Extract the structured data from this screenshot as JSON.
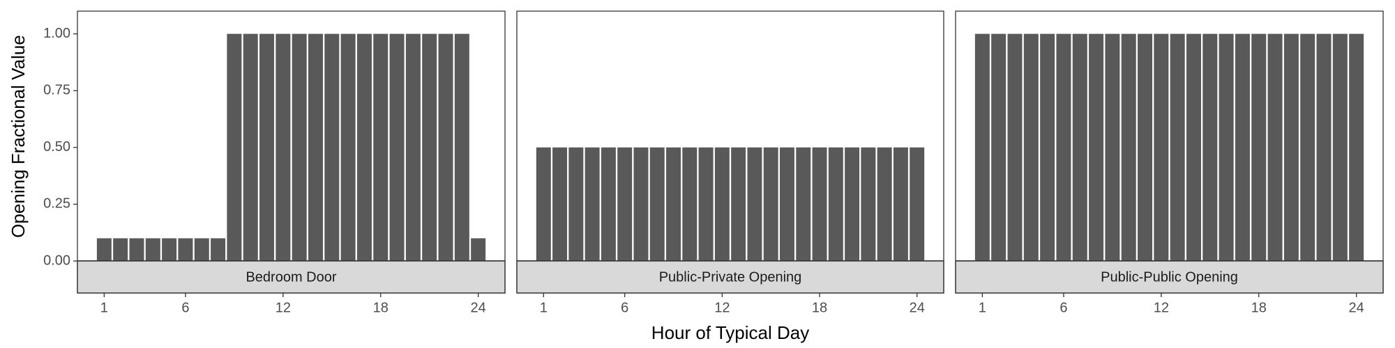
{
  "chart_data": {
    "type": "bar",
    "x_label": "Hour of Typical Day",
    "y_label": "Opening Fractional Value",
    "color": "#595959",
    "x": [
      1,
      2,
      3,
      4,
      5,
      6,
      7,
      8,
      9,
      10,
      11,
      12,
      13,
      14,
      15,
      16,
      17,
      18,
      19,
      20,
      21,
      22,
      23,
      24
    ],
    "xlim": [
      -0.645,
      25.645
    ],
    "xticks": [
      1,
      6,
      12,
      18,
      24
    ],
    "ylim": [
      0,
      1.1
    ],
    "yticks": [
      {
        "value": 0,
        "label": "0.00"
      },
      {
        "value": 0.25,
        "label": "0.25"
      },
      {
        "value": 0.5,
        "label": "0.50"
      },
      {
        "value": 0.75,
        "label": "0.75"
      },
      {
        "value": 1,
        "label": "1.00"
      }
    ],
    "panels": [
      {
        "title": "Bedroom Door",
        "values": [
          0.1,
          0.1,
          0.1,
          0.1,
          0.1,
          0.1,
          0.1,
          0.1,
          1,
          1,
          1,
          1,
          1,
          1,
          1,
          1,
          1,
          1,
          1,
          1,
          1,
          1,
          1,
          0.1
        ]
      },
      {
        "title": "Public-Private Opening",
        "values": [
          0.5,
          0.5,
          0.5,
          0.5,
          0.5,
          0.5,
          0.5,
          0.5,
          0.5,
          0.5,
          0.5,
          0.5,
          0.5,
          0.5,
          0.5,
          0.5,
          0.5,
          0.5,
          0.5,
          0.5,
          0.5,
          0.5,
          0.5,
          0.5
        ]
      },
      {
        "title": "Public-Public Opening",
        "values": [
          1,
          1,
          1,
          1,
          1,
          1,
          1,
          1,
          1,
          1,
          1,
          1,
          1,
          1,
          1,
          1,
          1,
          1,
          1,
          1,
          1,
          1,
          1,
          1
        ]
      }
    ]
  }
}
